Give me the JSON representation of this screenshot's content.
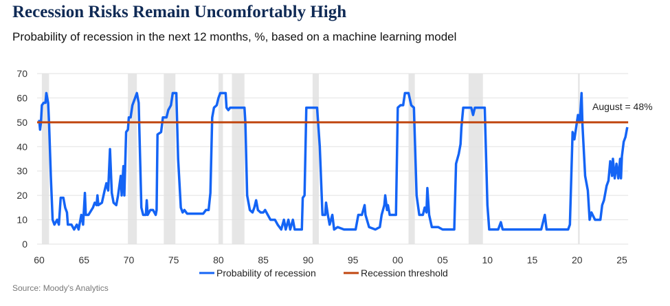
{
  "title": "Recession Risks Remain Uncomfortably High",
  "subtitle": "Probability of recession in the next 12 months, %, based on a machine learning model",
  "source": "Source: Moody's Analytics",
  "chart_data": {
    "type": "line",
    "title": "Recession Risks Remain Uncomfortably High",
    "xlabel": "",
    "ylabel": "",
    "xlim": [
      1960,
      2025.7
    ],
    "ylim": [
      0,
      70
    ],
    "yticks": [
      0,
      10,
      20,
      30,
      40,
      50,
      60,
      70
    ],
    "xticks": [
      {
        "value": 1960,
        "label": "60"
      },
      {
        "value": 1965,
        "label": "65"
      },
      {
        "value": 1970,
        "label": "70"
      },
      {
        "value": 1975,
        "label": "75"
      },
      {
        "value": 1980,
        "label": "80"
      },
      {
        "value": 1985,
        "label": "85"
      },
      {
        "value": 1990,
        "label": "90"
      },
      {
        "value": 1995,
        "label": "95"
      },
      {
        "value": 2000,
        "label": "00"
      },
      {
        "value": 2005,
        "label": "05"
      },
      {
        "value": 2010,
        "label": "10"
      },
      {
        "value": 2015,
        "label": "15"
      },
      {
        "value": 2020,
        "label": "20"
      },
      {
        "value": 2025,
        "label": "25"
      }
    ],
    "grid": true,
    "legend": "bottom",
    "annotation": "August = 48%",
    "recessions": [
      [
        1960.3,
        1961.1
      ],
      [
        1969.9,
        1970.9
      ],
      [
        1973.9,
        1975.2
      ],
      [
        1980.0,
        1980.5
      ],
      [
        1981.5,
        1982.9
      ],
      [
        1990.5,
        1991.2
      ],
      [
        2001.2,
        2001.9
      ],
      [
        2007.9,
        2009.5
      ],
      [
        2020.1,
        2020.3
      ]
    ],
    "series": [
      {
        "name": "Probability of recession",
        "color": "#1464f5",
        "x": [
          1960.0,
          1960.1,
          1960.2,
          1960.3,
          1960.5,
          1960.7,
          1960.8,
          1961.0,
          1961.1,
          1961.3,
          1961.5,
          1961.7,
          1962.0,
          1962.2,
          1962.4,
          1962.7,
          1962.9,
          1963.1,
          1963.2,
          1963.6,
          1963.9,
          1964.2,
          1964.4,
          1964.7,
          1964.9,
          1965.1,
          1965.2,
          1965.5,
          1966.0,
          1966.2,
          1966.4,
          1966.5,
          1966.6,
          1967.0,
          1967.3,
          1967.5,
          1967.7,
          1967.9,
          1968.0,
          1968.1,
          1968.3,
          1968.6,
          1968.8,
          1969.1,
          1969.2,
          1969.4,
          1969.5,
          1969.7,
          1969.9,
          1970.0,
          1970.2,
          1970.4,
          1970.6,
          1970.9,
          1971.1,
          1971.4,
          1971.6,
          1971.9,
          1972.0,
          1972.1,
          1972.4,
          1972.7,
          1973.0,
          1973.1,
          1973.2,
          1973.6,
          1973.8,
          1974.2,
          1974.4,
          1974.7,
          1974.9,
          1975.3,
          1975.5,
          1975.8,
          1976.0,
          1976.2,
          1976.5,
          1977.5,
          1978.3,
          1978.6,
          1978.9,
          1979.1,
          1979.3,
          1979.5,
          1979.8,
          1980.0,
          1980.2,
          1980.8,
          1980.9,
          1981.1,
          1981.3,
          1982.9,
          1983.0,
          1983.2,
          1983.5,
          1983.8,
          1984.0,
          1984.2,
          1984.4,
          1984.7,
          1985.0,
          1985.2,
          1985.5,
          1985.8,
          1986.3,
          1986.6,
          1987.0,
          1987.3,
          1987.5,
          1987.8,
          1988.0,
          1988.3,
          1988.5,
          1989.3,
          1989.4,
          1989.6,
          1989.8,
          1990.1,
          1991.0,
          1991.3,
          1991.6,
          1991.9,
          1992.0,
          1992.2,
          1992.4,
          1992.7,
          1992.9,
          1993.3,
          1994.0,
          1995.0,
          1995.3,
          1995.6,
          1996.0,
          1996.3,
          1996.4,
          1996.8,
          1997.5,
          1998.0,
          1998.2,
          1998.5,
          1998.6,
          1998.8,
          1998.9,
          1999.1,
          1999.5,
          1999.8,
          2000.0,
          2000.3,
          2000.6,
          2000.8,
          2001.2,
          2001.5,
          2001.8,
          2002.1,
          2002.4,
          2002.8,
          2003.0,
          2003.2,
          2003.3,
          2003.5,
          2003.8,
          2004.5,
          2005.0,
          2006.0,
          2006.3,
          2006.5,
          2006.8,
          2007.0,
          2007.1,
          2007.3,
          2008.2,
          2008.4,
          2008.6,
          2009.7,
          2010.0,
          2010.2,
          2011.2,
          2011.5,
          2011.7,
          2014.0,
          2016.0,
          2016.4,
          2016.6,
          2018.0,
          2019.0,
          2019.2,
          2019.5,
          2019.7,
          2019.9,
          2020.1,
          2020.3,
          2020.5,
          2020.6,
          2020.9,
          2021.2,
          2021.4,
          2021.6,
          2022.0,
          2022.6,
          2022.8,
          2023.0,
          2023.3,
          2023.5,
          2023.7,
          2023.9,
          2024.0,
          2024.2,
          2024.4,
          2024.6,
          2024.8,
          2024.9,
          2025.0,
          2025.2,
          2025.4,
          2025.6
        ],
        "values": [
          51,
          47,
          50,
          57,
          58,
          58,
          62,
          58,
          50,
          28,
          10,
          8,
          10,
          8,
          19,
          19,
          15,
          13,
          8,
          8,
          6,
          8,
          6,
          12,
          8,
          21,
          12,
          12,
          15,
          17,
          16,
          20,
          16,
          17,
          22,
          25,
          22,
          39,
          30,
          21,
          17,
          16,
          20,
          28,
          20,
          32,
          20,
          46,
          47,
          52,
          52,
          57,
          59,
          62,
          58,
          15,
          12,
          12,
          18,
          12,
          14,
          14,
          12,
          14,
          45,
          46,
          52,
          52,
          55,
          57,
          62,
          62,
          35,
          15,
          13,
          14,
          12.5,
          12.5,
          12.5,
          14,
          14,
          21,
          52,
          56,
          57,
          60,
          62,
          62,
          56,
          55,
          56,
          56,
          50,
          20,
          14,
          13,
          15,
          18,
          14,
          13,
          13,
          14,
          12,
          10,
          10,
          8,
          6,
          10,
          6,
          10,
          6,
          10,
          6,
          6,
          19,
          20,
          56,
          56,
          56,
          40,
          12,
          12,
          17,
          12,
          8,
          12,
          6,
          7,
          6,
          6,
          6,
          12,
          12,
          16,
          12,
          7,
          6,
          7,
          12,
          16,
          20,
          14,
          16,
          12,
          12,
          12,
          56,
          57,
          57,
          62,
          62,
          57,
          56,
          20,
          12,
          12,
          15,
          13,
          23,
          12,
          7,
          7,
          6,
          6,
          6,
          33,
          37,
          41,
          48,
          56,
          56,
          53,
          56,
          56,
          16,
          6,
          6,
          9,
          6,
          6,
          6,
          12,
          6,
          6,
          6,
          8,
          46,
          43,
          48,
          53,
          50,
          62,
          49,
          28,
          22,
          10,
          13,
          10,
          10,
          16,
          18,
          24,
          26,
          34,
          28,
          35,
          27,
          33,
          27,
          35,
          27,
          36,
          42,
          44,
          48
        ]
      },
      {
        "name": "Recession threshold",
        "color": "#c0460f",
        "constant": 50
      }
    ]
  }
}
